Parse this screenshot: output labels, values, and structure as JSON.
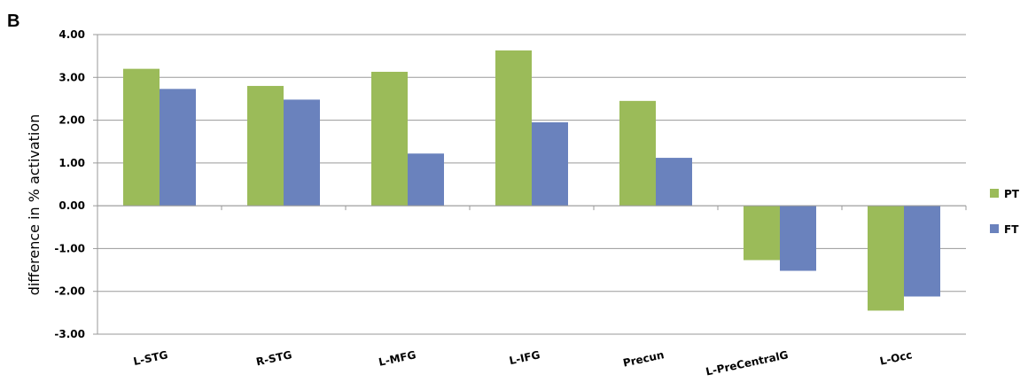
{
  "panel_label": "B",
  "chart_data": {
    "type": "bar",
    "categories": [
      "L-STG",
      "R-STG",
      "L-MFG",
      "L-IFG",
      "Precun",
      "L-PreCentralG",
      "L-Occ"
    ],
    "series": [
      {
        "name": "PT",
        "color": "#9bbb59",
        "values": [
          3.2,
          2.8,
          3.13,
          3.63,
          2.45,
          -1.27,
          -2.45
        ]
      },
      {
        "name": "FT",
        "color": "#6a82bd",
        "values": [
          2.73,
          2.48,
          1.22,
          1.95,
          1.12,
          -1.52,
          -2.12
        ]
      }
    ],
    "ylabel": "difference in % activation",
    "ylim": [
      -3,
      4
    ],
    "yticks": [
      "4.00",
      "3.00",
      "2.00",
      "1.00",
      "0.00",
      "-1.00",
      "-2.00",
      "-3.00"
    ],
    "grid": true,
    "legend_position": "right"
  }
}
